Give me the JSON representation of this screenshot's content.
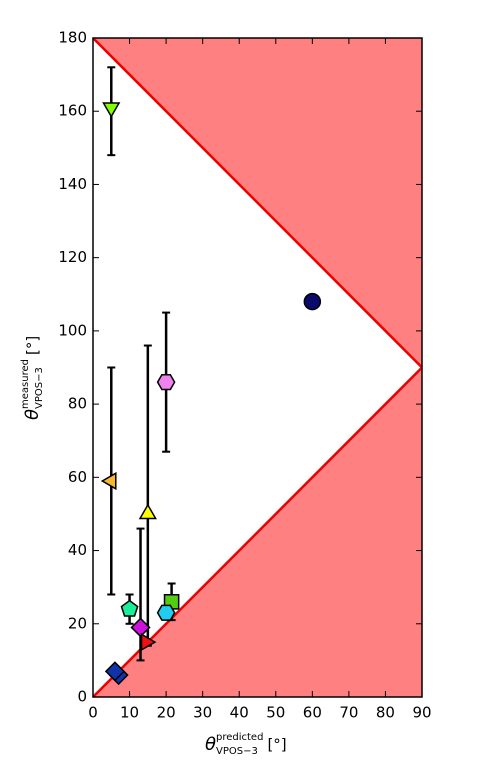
{
  "chart_data": {
    "type": "scatter",
    "x_label": {
      "symbol": "θ",
      "superscript": "predicted",
      "subscript": "VPOS−3",
      "unit": "[°]"
    },
    "y_label": {
      "symbol": "θ",
      "superscript": "measured",
      "subscript": "VPOS−3",
      "unit": "[°]"
    },
    "xlim": [
      0,
      90
    ],
    "ylim": [
      0,
      180
    ],
    "xticks": [
      0,
      10,
      20,
      30,
      40,
      50,
      60,
      70,
      80,
      90
    ],
    "yticks": [
      0,
      20,
      40,
      60,
      80,
      100,
      120,
      140,
      160,
      180
    ],
    "region_color": "#ff8080",
    "boundary_color": "#ee0000",
    "boundaries": [
      {
        "x": [
          0,
          90
        ],
        "y": [
          180,
          90
        ]
      },
      {
        "x": [
          0,
          90
        ],
        "y": [
          0,
          90
        ]
      }
    ],
    "points": [
      {
        "x": 5,
        "y": 161,
        "yerr_minus": 13,
        "yerr_plus": 11,
        "marker": "triangle-down",
        "color": "#80ff00"
      },
      {
        "x": 5,
        "y": 59,
        "yerr_minus": 31,
        "yerr_plus": 31,
        "marker": "triangle-left",
        "color": "#f5b82e"
      },
      {
        "x": 20,
        "y": 86,
        "yerr_minus": 19,
        "yerr_plus": 19,
        "marker": "hexagon",
        "color": "#ee82ee"
      },
      {
        "x": 15,
        "y": 50,
        "yerr_minus": 36,
        "yerr_plus": 46,
        "marker": "triangle-up",
        "color": "#ffff00"
      },
      {
        "x": 60,
        "y": 108,
        "yerr_minus": null,
        "yerr_plus": null,
        "marker": "circle",
        "color": "#0a0a6e"
      },
      {
        "x": 13,
        "y": 19,
        "yerr_minus": 9,
        "yerr_plus": 27,
        "marker": "diamond",
        "color": "#cc11dd"
      },
      {
        "x": 21.5,
        "y": 26,
        "yerr_minus": 5,
        "yerr_plus": 5,
        "marker": "square",
        "color": "#55cc11"
      },
      {
        "x": 10,
        "y": 24,
        "yerr_minus": 4,
        "yerr_plus": 4,
        "marker": "pentagon",
        "color": "#1aee99"
      },
      {
        "x": 20,
        "y": 23,
        "yerr_minus": null,
        "yerr_plus": null,
        "marker": "hexagon",
        "color": "#22ccee"
      },
      {
        "x": 14.5,
        "y": 15,
        "yerr_minus": null,
        "yerr_plus": null,
        "marker": "triangle-right",
        "color": "#ee1111"
      },
      {
        "x": 7,
        "y": 6,
        "yerr_minus": null,
        "yerr_plus": null,
        "marker": "diamond",
        "color": "#1133aa"
      },
      {
        "x": 6,
        "y": 7,
        "yerr_minus": null,
        "yerr_plus": null,
        "marker": "diamond",
        "color": "#1133aa"
      }
    ]
  }
}
